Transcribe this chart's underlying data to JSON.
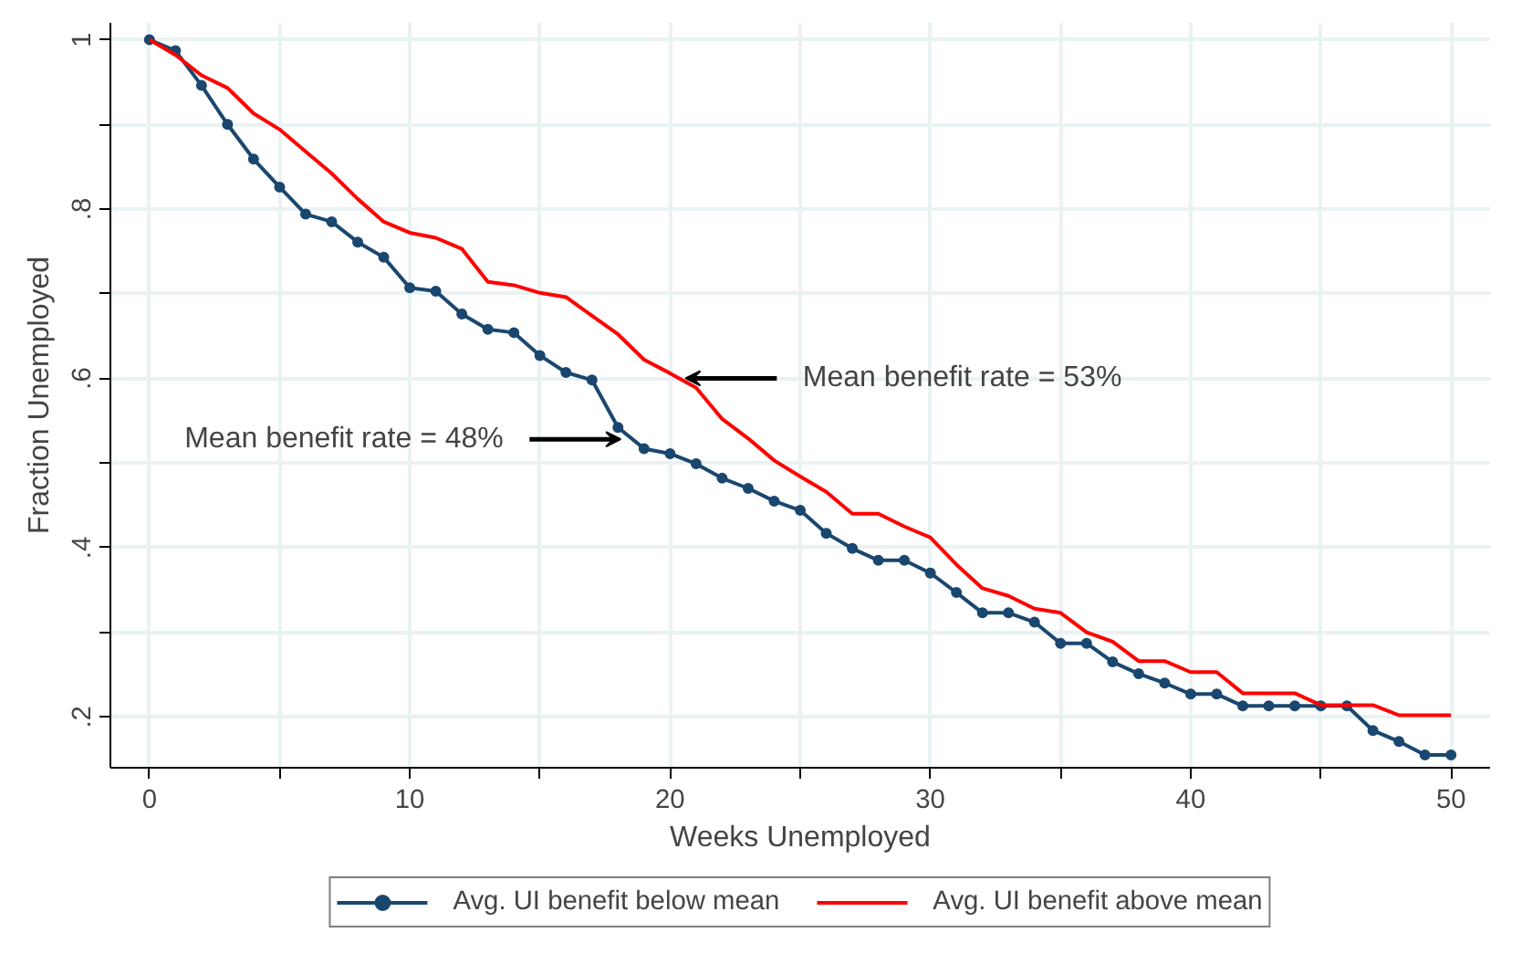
{
  "chart_data": {
    "type": "line",
    "xlabel": "Weeks Unemployed",
    "ylabel": "Fraction Unemployed",
    "x": [
      0,
      1,
      2,
      3,
      4,
      5,
      6,
      7,
      8,
      9,
      10,
      11,
      12,
      13,
      14,
      15,
      16,
      17,
      18,
      19,
      20,
      21,
      22,
      23,
      24,
      25,
      26,
      27,
      28,
      29,
      30,
      31,
      32,
      33,
      34,
      35,
      36,
      37,
      38,
      39,
      40,
      41,
      42,
      43,
      44,
      45,
      46,
      47,
      48,
      49,
      50
    ],
    "series": [
      {
        "name": "Avg. UI benefit below mean",
        "color": "#1a476f",
        "marker": "circle",
        "values": [
          1.0,
          0.987,
          0.946,
          0.9,
          0.859,
          0.826,
          0.794,
          0.785,
          0.761,
          0.743,
          0.707,
          0.703,
          0.676,
          0.658,
          0.654,
          0.627,
          0.607,
          0.598,
          0.542,
          0.517,
          0.511,
          0.499,
          0.482,
          0.47,
          0.455,
          0.444,
          0.417,
          0.399,
          0.385,
          0.385,
          0.37,
          0.347,
          0.323,
          0.323,
          0.312,
          0.287,
          0.287,
          0.265,
          0.251,
          0.24,
          0.227,
          0.227,
          0.213,
          0.213,
          0.213,
          0.213,
          0.213,
          0.184,
          0.171,
          0.155,
          0.155
        ]
      },
      {
        "name": "Avg. UI benefit above mean",
        "color": "#ff0000",
        "marker": "none",
        "values": [
          1.0,
          0.982,
          0.958,
          0.943,
          0.913,
          0.894,
          0.868,
          0.842,
          0.812,
          0.785,
          0.772,
          0.766,
          0.753,
          0.714,
          0.71,
          0.701,
          0.696,
          0.674,
          0.652,
          0.622,
          0.606,
          0.589,
          0.552,
          0.529,
          0.503,
          0.484,
          0.466,
          0.44,
          0.44,
          0.425,
          0.412,
          0.38,
          0.352,
          0.343,
          0.328,
          0.323,
          0.3,
          0.289,
          0.266,
          0.266,
          0.253,
          0.253,
          0.228,
          0.228,
          0.228,
          0.214,
          0.214,
          0.214,
          0.202,
          0.202,
          0.202
        ]
      }
    ],
    "xlim": [
      -1.5,
      51.5
    ],
    "ylim": [
      0.14,
      1.02
    ],
    "xticks": [
      0,
      {
        "value": 5,
        "label": null
      },
      10,
      {
        "value": 15,
        "label": null
      },
      20,
      {
        "value": 25,
        "label": null
      },
      30,
      {
        "value": 35,
        "label": null
      },
      40,
      {
        "value": 45,
        "label": null
      },
      50
    ],
    "yticks": [
      {
        "value": 0.2,
        "label": ".2"
      },
      {
        "value": 0.3,
        "label": null
      },
      {
        "value": 0.4,
        "label": ".4"
      },
      {
        "value": 0.5,
        "label": null
      },
      {
        "value": 0.6,
        "label": ".6"
      },
      {
        "value": 0.7,
        "label": null
      },
      {
        "value": 0.8,
        "label": ".8"
      },
      {
        "value": 0.9,
        "label": null
      },
      1
    ],
    "grid": true,
    "legend": "bottom",
    "line_style": "solid",
    "annotations": [
      {
        "text": "Mean benefit rate = 53%",
        "x": 20.6,
        "y": 0.6
      },
      {
        "text": "Mean benefit rate = 48%",
        "x": 18.1,
        "y": 0.528
      }
    ]
  }
}
